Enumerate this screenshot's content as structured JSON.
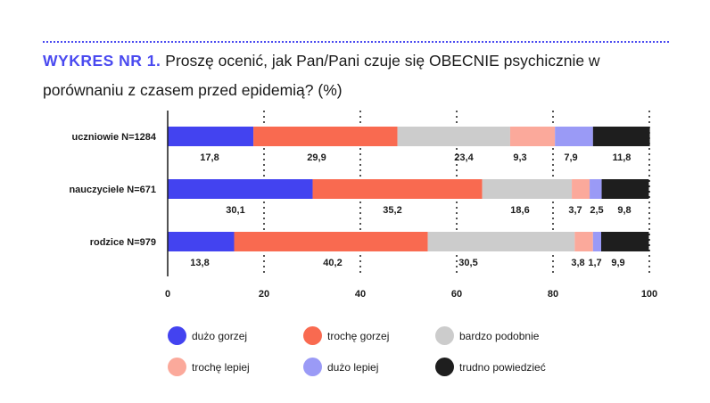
{
  "header": {
    "title_prefix": "WYKRES NR 1.",
    "title_text": " Proszę ocenić, jak Pan/Pani czuje się OBECNIE psychicznie w porównaniu z czasem przed epidemią? (%)"
  },
  "colors": {
    "accent": "#4a4af0",
    "segments": [
      "#4343f0",
      "#f96a50",
      "#cccccc",
      "#fba99b",
      "#9a9af6",
      "#1e1e1e"
    ]
  },
  "chart_data": {
    "type": "bar",
    "orientation": "horizontal",
    "stacked": true,
    "categories": [
      "uczniowie N=1284",
      "nauczyciele N=671",
      "rodzice N=979"
    ],
    "series": [
      {
        "name": "dużo gorzej",
        "values": [
          17.8,
          30.1,
          13.8
        ]
      },
      {
        "name": "trochę gorzej",
        "values": [
          29.9,
          35.2,
          40.2
        ]
      },
      {
        "name": "bardzo podobnie",
        "values": [
          23.4,
          18.6,
          30.5
        ]
      },
      {
        "name": "trochę lepiej",
        "values": [
          9.3,
          3.7,
          3.8
        ]
      },
      {
        "name": "dużo lepiej",
        "values": [
          7.9,
          2.5,
          1.7
        ]
      },
      {
        "name": "trudno powiedzieć",
        "values": [
          11.8,
          9.8,
          9.9
        ]
      }
    ],
    "value_labels": [
      [
        "17,8",
        "29,9",
        "23,4",
        "9,3",
        "7,9",
        "11,8"
      ],
      [
        "30,1",
        "35,2",
        "18,6",
        "3,7",
        "2,5",
        "9,8"
      ],
      [
        "13,8",
        "40,2",
        "30,5",
        "3,8",
        "1,7",
        "9,9"
      ]
    ],
    "x_ticks": [
      0,
      20,
      40,
      60,
      80,
      100
    ],
    "xlim": [
      0,
      100
    ],
    "grid": "dotted vertical",
    "legend_position": "bottom"
  }
}
